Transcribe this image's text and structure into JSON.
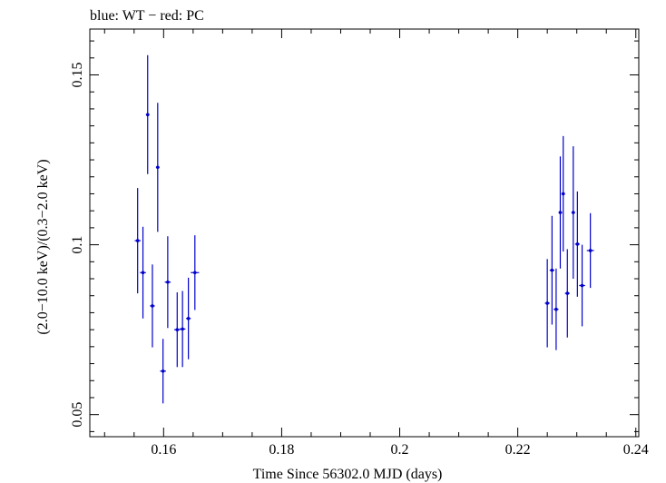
{
  "chart_data": {
    "type": "scatter",
    "title": "blue: WT − red: PC",
    "xlabel": "Time Since 56302.0 MJD (days)",
    "ylabel": "(2.0−10.0 keV)/(0.3−2.0 keV)",
    "xlim": [
      0.1475,
      0.2405
    ],
    "ylim": [
      0.0435,
      0.1635
    ],
    "x_ticks": [
      {
        "value": 0.16,
        "label": "0.16"
      },
      {
        "value": 0.18,
        "label": "0.18"
      },
      {
        "value": 0.2,
        "label": "0.2"
      },
      {
        "value": 0.22,
        "label": "0.22"
      },
      {
        "value": 0.24,
        "label": "0.24"
      }
    ],
    "y_ticks": [
      {
        "value": 0.05,
        "label": "0.05"
      },
      {
        "value": 0.1,
        "label": "0.1"
      },
      {
        "value": 0.15,
        "label": "0.15"
      }
    ],
    "series": [
      {
        "name": "WT",
        "color": "#0000cc",
        "points": [
          {
            "x": 0.1556,
            "xerr": 0.0005,
            "y": 0.1012,
            "yerr": 0.0155
          },
          {
            "x": 0.1565,
            "xerr": 0.0005,
            "y": 0.0918,
            "yerr": 0.0135
          },
          {
            "x": 0.1573,
            "xerr": 0.0003,
            "y": 0.1383,
            "yerr": 0.0175
          },
          {
            "x": 0.1581,
            "xerr": 0.0004,
            "y": 0.082,
            "yerr": 0.0122
          },
          {
            "x": 0.159,
            "xerr": 0.0003,
            "y": 0.1228,
            "yerr": 0.019
          },
          {
            "x": 0.1599,
            "xerr": 0.0005,
            "y": 0.0628,
            "yerr": 0.0095
          },
          {
            "x": 0.1607,
            "xerr": 0.0005,
            "y": 0.089,
            "yerr": 0.0135
          },
          {
            "x": 0.1623,
            "xerr": 0.0005,
            "y": 0.075,
            "yerr": 0.011
          },
          {
            "x": 0.1632,
            "xerr": 0.0005,
            "y": 0.0752,
            "yerr": 0.0112
          },
          {
            "x": 0.1642,
            "xerr": 0.0004,
            "y": 0.0783,
            "yerr": 0.012
          },
          {
            "x": 0.1653,
            "xerr": 0.0007,
            "y": 0.0918,
            "yerr": 0.011
          },
          {
            "x": 0.225,
            "xerr": 0.0004,
            "y": 0.0828,
            "yerr": 0.013
          },
          {
            "x": 0.2258,
            "xerr": 0.0004,
            "y": 0.0925,
            "yerr": 0.016
          },
          {
            "x": 0.2265,
            "xerr": 0.0004,
            "y": 0.081,
            "yerr": 0.012
          },
          {
            "x": 0.2272,
            "xerr": 0.0003,
            "y": 0.1095,
            "yerr": 0.0165
          },
          {
            "x": 0.2277,
            "xerr": 0.0003,
            "y": 0.115,
            "yerr": 0.017
          },
          {
            "x": 0.2284,
            "xerr": 0.0004,
            "y": 0.0857,
            "yerr": 0.013
          },
          {
            "x": 0.2294,
            "xerr": 0.0003,
            "y": 0.1095,
            "yerr": 0.0195
          },
          {
            "x": 0.2301,
            "xerr": 0.0004,
            "y": 0.1002,
            "yerr": 0.0155
          },
          {
            "x": 0.2309,
            "xerr": 0.0005,
            "y": 0.088,
            "yerr": 0.012
          },
          {
            "x": 0.2323,
            "xerr": 0.0006,
            "y": 0.0983,
            "yerr": 0.011
          }
        ]
      }
    ]
  }
}
